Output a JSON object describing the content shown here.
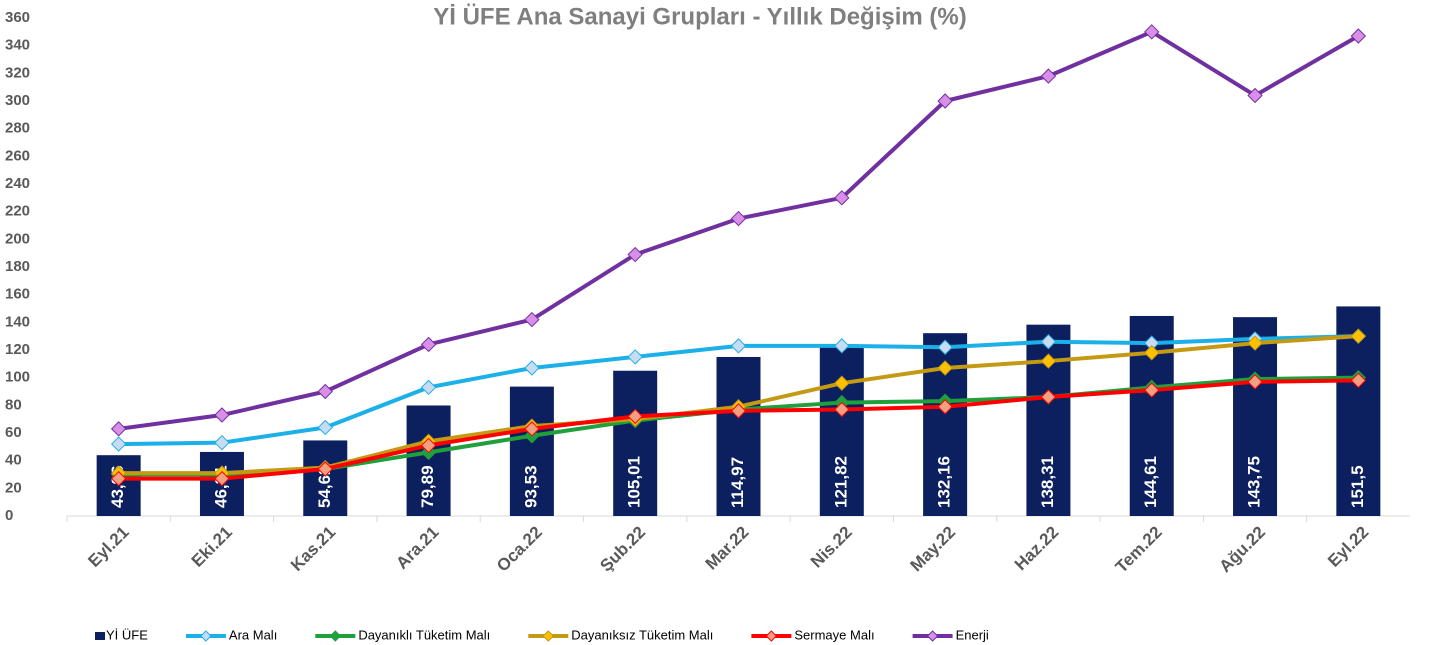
{
  "chart_data": {
    "type": "bar_line",
    "title": "Yİ ÜFE Ana Sanayi Grupları - Yıllık Değişim (%)",
    "categories": [
      "Eyl.21",
      "Eki.21",
      "Kas.21",
      "Ara.21",
      "Oca.22",
      "Şub.22",
      "Mar.22",
      "Nis.22",
      "May.22",
      "Haz.22",
      "Tem.22",
      "Ağu.22",
      "Eyl.22"
    ],
    "ylim": [
      0,
      360
    ],
    "yticks": [
      0,
      20,
      40,
      60,
      80,
      100,
      120,
      140,
      160,
      180,
      200,
      220,
      240,
      260,
      280,
      300,
      320,
      340,
      360
    ],
    "series": [
      {
        "name": "Yİ ÜFE",
        "type": "bar",
        "color": "#0c1f5e",
        "values": [
          43.96,
          46.31,
          54.62,
          79.89,
          93.53,
          105.01,
          114.97,
          121.82,
          132.16,
          138.31,
          144.61,
          143.75,
          151.5
        ],
        "value_labels": [
          "43,96",
          "46,31",
          "54,62",
          "79,89",
          "93,53",
          "105,01",
          "114,97",
          "121,82",
          "132,16",
          "138,31",
          "144,61",
          "143,75",
          "151,5"
        ]
      },
      {
        "name": "Ara Malı",
        "type": "line",
        "color": "#1cb0e8",
        "marker_color": "#c9dbf2",
        "values": [
          52,
          53,
          64,
          93,
          107,
          115,
          123,
          123,
          122,
          126,
          125,
          128,
          130
        ]
      },
      {
        "name": "Dayanıklı Tüketim Malı",
        "type": "line",
        "color": "#1fa03c",
        "marker_color": "#1fa03c",
        "values": [
          30,
          30,
          34,
          46,
          58,
          69,
          77,
          82,
          83,
          86,
          93,
          99,
          100
        ]
      },
      {
        "name": "Dayanıksız Tüketim Malı",
        "type": "line",
        "color": "#c49a14",
        "marker_color": "#ffc000",
        "values": [
          31,
          31,
          35,
          54,
          65,
          70,
          79,
          96,
          107,
          112,
          118,
          125,
          130
        ]
      },
      {
        "name": "Sermaye Malı",
        "type": "line",
        "color": "#ff0000",
        "marker_color": "#f4a080",
        "values": [
          27,
          27,
          34,
          51,
          63,
          72,
          76,
          77,
          79,
          86,
          91,
          97,
          98
        ]
      },
      {
        "name": "Enerji",
        "type": "line",
        "color": "#7030a0",
        "marker_color": "#d98ee8",
        "values": [
          63,
          73,
          90,
          124,
          142,
          189,
          215,
          230,
          300,
          318,
          350,
          304,
          347
        ]
      }
    ]
  }
}
